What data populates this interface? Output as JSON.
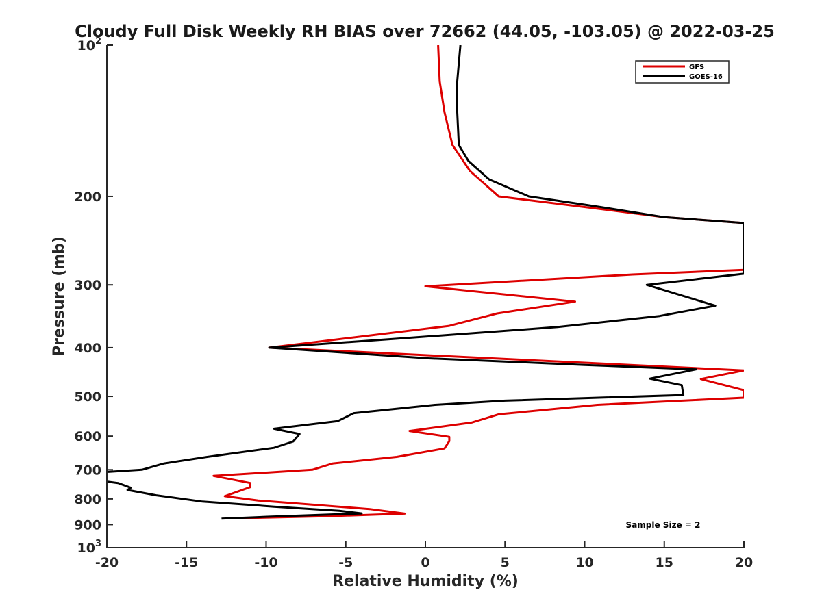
{
  "chart_data": {
    "type": "line",
    "title": "Cloudy Full Disk Weekly RH BIAS over 72662 (44.05, -103.05) @ 2022-03-25",
    "xlabel": "Relative Humidity (%)",
    "ylabel": "Pressure (mb)",
    "xlim": [
      -20,
      20
    ],
    "ylim": [
      100,
      1000
    ],
    "y_scale": "log",
    "y_reversed": true,
    "grid": false,
    "legend_position": "top-right",
    "x_ticks": [
      {
        "value": -20,
        "label": "-20"
      },
      {
        "value": -15,
        "label": "-15"
      },
      {
        "value": -10,
        "label": "-10"
      },
      {
        "value": -5,
        "label": "-5"
      },
      {
        "value": 0,
        "label": "0"
      },
      {
        "value": 5,
        "label": "5"
      },
      {
        "value": 10,
        "label": "10"
      },
      {
        "value": 15,
        "label": "15"
      },
      {
        "value": 20,
        "label": "20"
      }
    ],
    "y_ticks": [
      {
        "value": 100,
        "label": "10",
        "sup": "2"
      },
      {
        "value": 200,
        "label": "200"
      },
      {
        "value": 300,
        "label": "300"
      },
      {
        "value": 400,
        "label": "400"
      },
      {
        "value": 500,
        "label": "500"
      },
      {
        "value": 600,
        "label": "600"
      },
      {
        "value": 700,
        "label": "700"
      },
      {
        "value": 800,
        "label": "800"
      },
      {
        "value": 900,
        "label": "900"
      },
      {
        "value": 1000,
        "label": "10",
        "sup": "3"
      }
    ],
    "series": [
      {
        "name": "GFS",
        "color": "#dd0000",
        "points": [
          [
            0.8,
            100
          ],
          [
            0.9,
            118
          ],
          [
            1.2,
            136
          ],
          [
            1.7,
            158
          ],
          [
            2.8,
            178
          ],
          [
            4.6,
            200
          ],
          [
            10.0,
            210
          ],
          [
            15.0,
            220
          ],
          [
            20.0,
            226
          ],
          [
            20.0,
            280
          ],
          [
            13.0,
            286
          ],
          [
            0.0,
            302
          ],
          [
            9.4,
            324
          ],
          [
            4.5,
            342
          ],
          [
            1.5,
            362
          ],
          [
            -4.0,
            380
          ],
          [
            -9.8,
            400
          ],
          [
            20.0,
            444
          ],
          [
            17.3,
            462
          ],
          [
            20.0,
            486
          ],
          [
            20.0,
            503
          ],
          [
            10.8,
            520
          ],
          [
            4.6,
            543
          ],
          [
            2.9,
            564
          ],
          [
            -1.0,
            586
          ],
          [
            1.5,
            602
          ],
          [
            1.5,
            614
          ],
          [
            1.2,
            635
          ],
          [
            -1.8,
            660
          ],
          [
            -5.8,
            680
          ],
          [
            -7.1,
            700
          ],
          [
            -13.3,
            720
          ],
          [
            -11.0,
            744
          ],
          [
            -11.0,
            758
          ],
          [
            -12.6,
            790
          ],
          [
            -10.5,
            806
          ],
          [
            -3.5,
            838
          ],
          [
            -1.3,
            856
          ],
          [
            -6.0,
            866
          ],
          [
            -11.7,
            874
          ]
        ]
      },
      {
        "name": "GOES-16",
        "color": "#000000",
        "points": [
          [
            2.2,
            100
          ],
          [
            2.0,
            118
          ],
          [
            2.0,
            136
          ],
          [
            2.1,
            158
          ],
          [
            2.7,
            170
          ],
          [
            4.0,
            185
          ],
          [
            6.5,
            200
          ],
          [
            11.0,
            210
          ],
          [
            15.0,
            220
          ],
          [
            20.0,
            226
          ],
          [
            20.0,
            285
          ],
          [
            13.9,
            300
          ],
          [
            18.2,
            330
          ],
          [
            14.7,
            346
          ],
          [
            8.3,
            364
          ],
          [
            -1.8,
            384
          ],
          [
            -9.8,
            400
          ],
          [
            0.2,
            420
          ],
          [
            10.0,
            433
          ],
          [
            17.0,
            442
          ],
          [
            14.1,
            461
          ],
          [
            16.1,
            475
          ],
          [
            16.2,
            497
          ],
          [
            5.0,
            510
          ],
          [
            0.6,
            520
          ],
          [
            -4.5,
            540
          ],
          [
            -5.5,
            560
          ],
          [
            -9.5,
            580
          ],
          [
            -7.9,
            594
          ],
          [
            -8.3,
            615
          ],
          [
            -9.5,
            633
          ],
          [
            -13.7,
            660
          ],
          [
            -16.4,
            680
          ],
          [
            -17.8,
            700
          ],
          [
            -20.0,
            707
          ],
          [
            -20.0,
            739
          ],
          [
            -19.3,
            744
          ],
          [
            -18.5,
            760
          ],
          [
            -18.7,
            768
          ],
          [
            -16.9,
            787
          ],
          [
            -14.0,
            810
          ],
          [
            -9.5,
            829
          ],
          [
            -5.4,
            845
          ],
          [
            -4.0,
            855
          ],
          [
            -9.8,
            868
          ],
          [
            -12.8,
            876
          ]
        ]
      }
    ],
    "annotations": [
      {
        "text": "Sample Size = 2"
      }
    ]
  }
}
